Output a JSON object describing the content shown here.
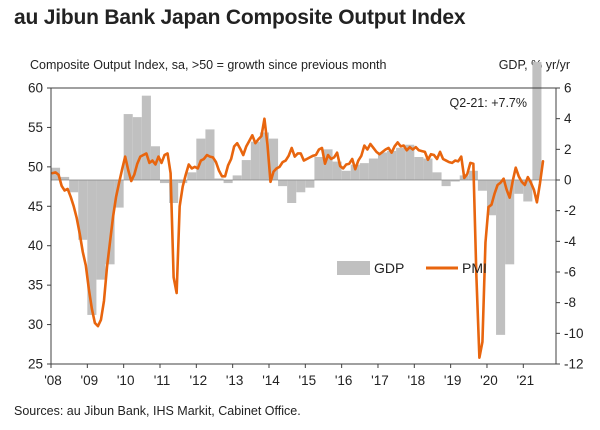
{
  "title": "au Jibun Bank Japan Composite Output Index",
  "subtitle_left": "Composite Output Index, sa, >50 = growth since previous month",
  "subtitle_right": "GDP, % yr/yr",
  "source": "Sources: au Jibun Bank, IHS Markit, Cabinet Office.",
  "colors": {
    "pmi": "#e8650e",
    "gdp": "#c0c0c0",
    "axis": "#404040"
  },
  "chart_data": {
    "type": "bar+line",
    "annotation": "Q2-21: +7.7%",
    "x_tick_labels": [
      "'08",
      "'09",
      "'10",
      "'11",
      "'12",
      "'13",
      "'14",
      "'15",
      "'16",
      "'17",
      "'18",
      "'19",
      "'20",
      "'21"
    ],
    "left_axis": {
      "ylim": [
        25,
        60
      ],
      "ticks": [
        25,
        30,
        35,
        40,
        45,
        50,
        55,
        60
      ]
    },
    "right_axis": {
      "ylim": [
        -12,
        6
      ],
      "ticks": [
        -12,
        -10,
        -8,
        -6,
        -4,
        -2,
        0,
        2,
        4,
        6
      ],
      "zero_aligned_with_left": 48.3
    },
    "legend": [
      {
        "key": "gdp",
        "label": "GDP"
      },
      {
        "key": "pmi",
        "label": "PMI"
      }
    ],
    "gdp": {
      "name": "GDP",
      "axis": "right",
      "quarters": [
        "2008-Q1",
        "2008-Q2",
        "2008-Q3",
        "2008-Q4",
        "2009-Q1",
        "2009-Q2",
        "2009-Q3",
        "2009-Q4",
        "2010-Q1",
        "2010-Q2",
        "2010-Q3",
        "2010-Q4",
        "2011-Q1",
        "2011-Q2",
        "2011-Q3",
        "2011-Q4",
        "2012-Q1",
        "2012-Q2",
        "2012-Q3",
        "2012-Q4",
        "2013-Q1",
        "2013-Q2",
        "2013-Q3",
        "2013-Q4",
        "2014-Q1",
        "2014-Q2",
        "2014-Q3",
        "2014-Q4",
        "2015-Q1",
        "2015-Q2",
        "2015-Q3",
        "2015-Q4",
        "2016-Q1",
        "2016-Q2",
        "2016-Q3",
        "2016-Q4",
        "2017-Q1",
        "2017-Q2",
        "2017-Q3",
        "2017-Q4",
        "2018-Q1",
        "2018-Q2",
        "2018-Q3",
        "2018-Q4",
        "2019-Q1",
        "2019-Q2",
        "2019-Q3",
        "2019-Q4",
        "2020-Q1",
        "2020-Q2",
        "2020-Q3",
        "2020-Q4",
        "2021-Q1",
        "2021-Q2"
      ],
      "values": [
        0.8,
        0.2,
        -0.8,
        -3.9,
        -8.8,
        -6.5,
        -5.5,
        -1.8,
        4.3,
        4.1,
        5.5,
        2.2,
        -0.2,
        -1.5,
        -0.2,
        0.5,
        2.7,
        3.3,
        0.1,
        -0.2,
        0.3,
        1.3,
        2.5,
        3.1,
        2.7,
        -0.4,
        -1.5,
        -0.8,
        -0.5,
        1.5,
        2.0,
        1.2,
        0.6,
        1.0,
        1.1,
        1.4,
        1.8,
        1.9,
        2.1,
        2.3,
        1.5,
        1.4,
        0.5,
        -0.4,
        -0.1,
        0.3,
        0.6,
        -0.7,
        -2.3,
        -10.1,
        -5.5,
        -0.9,
        -1.4,
        7.7
      ]
    },
    "pmi": {
      "name": "PMI",
      "axis": "left",
      "x_start": 2008.0,
      "step": 0.083333,
      "values": [
        49.2,
        49.3,
        49.0,
        47.6,
        47.0,
        47.2,
        46.2,
        45.0,
        43.5,
        41.5,
        39.2,
        37.5,
        34.5,
        32.0,
        30.2,
        29.8,
        30.6,
        33.0,
        37.3,
        40.5,
        43.7,
        46.2,
        48.0,
        49.7,
        51.3,
        49.6,
        48.2,
        49.0,
        50.4,
        51.3,
        51.5,
        51.7,
        50.5,
        50.8,
        50.3,
        51.3,
        50.5,
        51.5,
        51.7,
        49.2,
        36.0,
        34.0,
        45.0,
        47.5,
        49.0,
        50.3,
        49.8,
        50.0,
        49.8,
        50.8,
        51.0,
        51.5,
        51.3,
        51.2,
        50.6,
        49.5,
        48.8,
        48.8,
        50.2,
        51.0,
        52.6,
        53.0,
        52.3,
        51.5,
        52.6,
        53.3,
        54.0,
        53.0,
        53.5,
        53.9,
        56.1,
        52.8,
        48.1,
        49.4,
        49.8,
        50.0,
        50.6,
        50.8,
        51.4,
        52.4,
        51.3,
        51.7,
        51.7,
        50.8,
        51.0,
        51.2,
        51.4,
        51.5,
        52.2,
        52.4,
        50.4,
        51.5,
        51.0,
        51.2,
        51.8,
        50.1,
        49.8,
        50.3,
        50.4,
        51.0,
        49.7,
        50.8,
        51.4,
        52.7,
        52.2,
        52.9,
        52.4,
        51.9,
        51.6,
        51.9,
        52.2,
        52.4,
        51.8,
        52.6,
        53.1,
        52.6,
        52.7,
        52.1,
        52.5,
        52.2,
        52.5,
        52.1,
        52.0,
        51.9,
        50.9,
        51.6,
        51.5,
        51.0,
        51.9,
        51.0,
        50.8,
        50.6,
        50.5,
        50.8,
        50.7,
        51.3,
        48.6,
        49.1,
        50.5,
        50.4,
        36.2,
        25.8,
        27.8,
        40.4,
        44.9,
        45.2,
        46.6,
        47.7,
        48.0,
        48.5,
        47.1,
        46.1,
        48.2,
        49.9,
        48.8,
        48.1,
        47.7,
        48.7,
        48.0,
        47.1,
        45.5,
        47.9,
        50.7
      ]
    }
  }
}
